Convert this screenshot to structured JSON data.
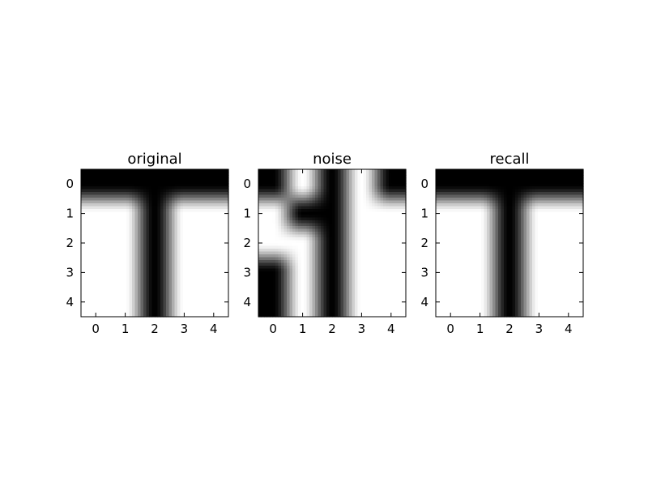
{
  "chart_data": [
    {
      "type": "heatmap",
      "title": "original",
      "colormap": "gray",
      "interpolation": "bicubic",
      "xticks": [
        "0",
        "1",
        "2",
        "3",
        "4"
      ],
      "yticks": [
        "0",
        "1",
        "2",
        "3",
        "4"
      ],
      "xlim": [
        -0.5,
        4.5
      ],
      "ylim": [
        4.5,
        -0.5
      ],
      "values": [
        [
          0,
          0,
          0,
          0,
          0
        ],
        [
          1,
          1,
          0,
          1,
          1
        ],
        [
          1,
          1,
          0,
          1,
          1
        ],
        [
          1,
          1,
          0,
          1,
          1
        ],
        [
          1,
          1,
          0,
          1,
          1
        ]
      ]
    },
    {
      "type": "heatmap",
      "title": "noise",
      "colormap": "gray",
      "interpolation": "bicubic",
      "xticks": [
        "0",
        "1",
        "2",
        "3",
        "4"
      ],
      "yticks": [
        "0",
        "1",
        "2",
        "3",
        "4"
      ],
      "xlim": [
        -0.5,
        4.5
      ],
      "ylim": [
        4.5,
        -0.5
      ],
      "values": [
        [
          0,
          1,
          0,
          1,
          0
        ],
        [
          1,
          0,
          0,
          1,
          1
        ],
        [
          1,
          1,
          0,
          1,
          1
        ],
        [
          0,
          1,
          0,
          1,
          1
        ],
        [
          0,
          1,
          0,
          1,
          1
        ]
      ]
    },
    {
      "type": "heatmap",
      "title": "recall",
      "colormap": "gray",
      "interpolation": "bicubic",
      "xticks": [
        "0",
        "1",
        "2",
        "3",
        "4"
      ],
      "yticks": [
        "0",
        "1",
        "2",
        "3",
        "4"
      ],
      "xlim": [
        -0.5,
        4.5
      ],
      "ylim": [
        4.5,
        -0.5
      ],
      "values": [
        [
          0,
          0,
          0,
          0,
          0
        ],
        [
          1,
          1,
          0,
          1,
          1
        ],
        [
          1,
          1,
          0,
          1,
          1
        ],
        [
          1,
          1,
          0,
          1,
          1
        ],
        [
          1,
          1,
          0,
          1,
          1
        ]
      ]
    }
  ]
}
